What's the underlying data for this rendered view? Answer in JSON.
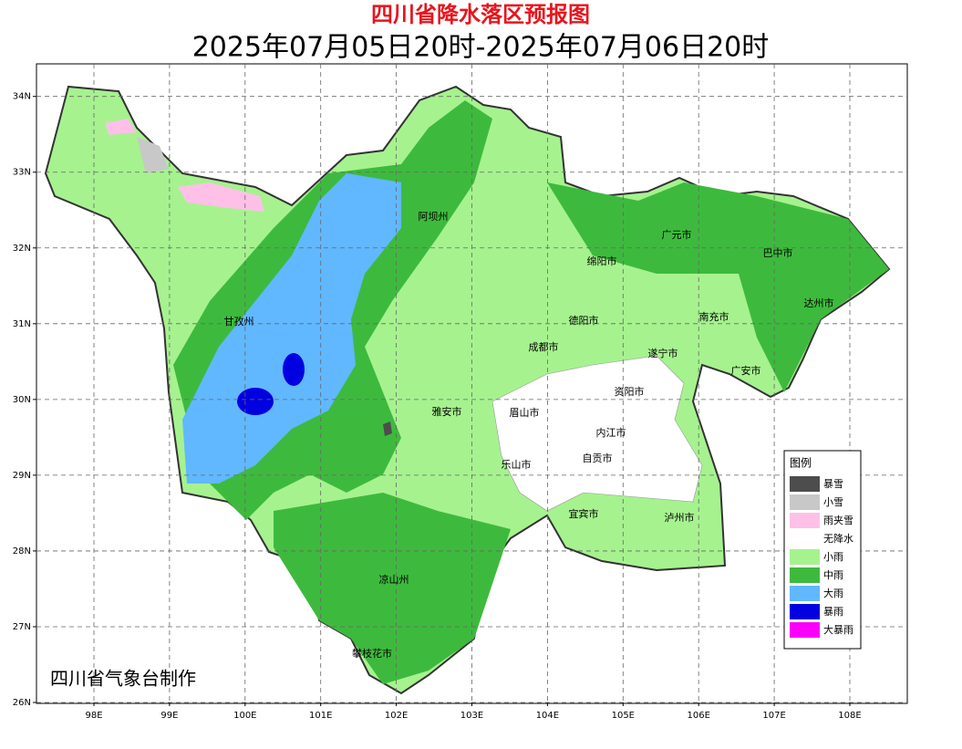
{
  "header": {
    "title": "四川省降水落区预报图",
    "subtitle": "2025年07月05日20时-2025年07月06日20时"
  },
  "map": {
    "lon_range": [
      97.24,
      108.76
    ],
    "lat_range": [
      26,
      34.43
    ],
    "lon_ticks": [
      {
        "value": 98,
        "label": "98E"
      },
      {
        "value": 99,
        "label": "99E"
      },
      {
        "value": 100,
        "label": "100E"
      },
      {
        "value": 101,
        "label": "101E"
      },
      {
        "value": 102,
        "label": "102E"
      },
      {
        "value": 103,
        "label": "103E"
      },
      {
        "value": 104,
        "label": "104E"
      },
      {
        "value": 105,
        "label": "105E"
      },
      {
        "value": 106,
        "label": "106E"
      },
      {
        "value": 107,
        "label": "107E"
      },
      {
        "value": 108,
        "label": "108E"
      }
    ],
    "lat_ticks": [
      {
        "value": 26,
        "label": "26N"
      },
      {
        "value": 27,
        "label": "27N"
      },
      {
        "value": 28,
        "label": "28N"
      },
      {
        "value": 29,
        "label": "29N"
      },
      {
        "value": 30,
        "label": "30N"
      },
      {
        "value": 31,
        "label": "31N"
      },
      {
        "value": 32,
        "label": "32N"
      },
      {
        "value": 33,
        "label": "33N"
      },
      {
        "value": 34,
        "label": "34N"
      }
    ],
    "grid": true,
    "regions": [
      "阿坝州",
      "广元市",
      "巴中市",
      "绵阳市",
      "甘孜州",
      "德阳市",
      "南充市",
      "达州市",
      "成都市",
      "遂宁市",
      "广安市",
      "资阳市",
      "雅安市",
      "眉山市",
      "内江市",
      "自贡市",
      "乐山市",
      "宜宾市",
      "泸州市",
      "凉山州",
      "攀枝花市"
    ]
  },
  "legend": {
    "title": "图例",
    "items": [
      {
        "label": "暴雪",
        "color": "#4d4d4d"
      },
      {
        "label": "小雪",
        "color": "#c8c8c8"
      },
      {
        "label": "雨夹雪",
        "color": "#ffc0e8"
      },
      {
        "label": "无降水",
        "color": "#ffffff"
      },
      {
        "label": "小雨",
        "color": "#a6f28f"
      },
      {
        "label": "中雨",
        "color": "#3dba3d"
      },
      {
        "label": "大雨",
        "color": "#61b8ff"
      },
      {
        "label": "暴雨",
        "color": "#0000e1"
      },
      {
        "label": "大暴雨",
        "color": "#fa00fa"
      }
    ]
  },
  "credit": "四川省气象台制作"
}
